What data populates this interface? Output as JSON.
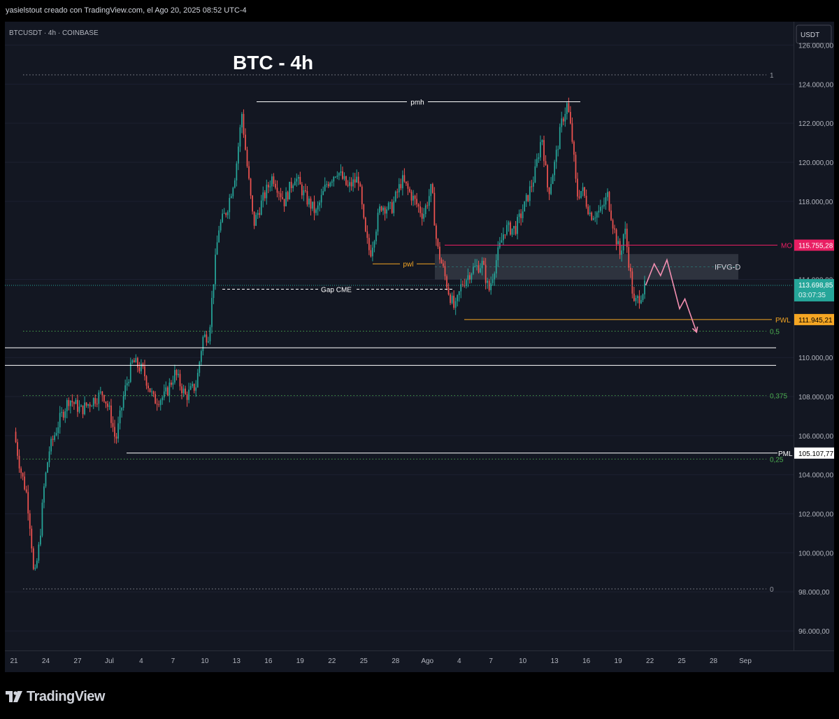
{
  "header_text": "yasielstout creado con TradingView.com, el Ago 20, 2025 08:52 UTC-4",
  "symbol_label": "BTCUSDT · 4h · COINBASE",
  "brand": "TradingView",
  "icon": "tradingview-logo-icon",
  "colors": {
    "background": "#131722",
    "up": "#26a69a",
    "down": "#ef5350",
    "mo": "#e91e63",
    "pwl": "#f5a623",
    "fib": "#4caf50",
    "annotation": "#ffffff"
  },
  "chart_data": {
    "type": "candlestick",
    "title": "BTC - 4h",
    "currency": "USDT",
    "ylim": [
      95000,
      127200
    ],
    "y_ticks": [
      {
        "value": 96000,
        "label": "96.000,00"
      },
      {
        "value": 98000,
        "label": "98.000,00"
      },
      {
        "value": 100000,
        "label": "100.000,00"
      },
      {
        "value": 102000,
        "label": "102.000,00"
      },
      {
        "value": 104000,
        "label": "104.000,00"
      },
      {
        "value": 106000,
        "label": "106.000,00"
      },
      {
        "value": 108000,
        "label": "108.000,00"
      },
      {
        "value": 110000,
        "label": "110.000,00"
      },
      {
        "value": 114000,
        "label": "114.000,00"
      },
      {
        "value": 118000,
        "label": "118.000,00"
      },
      {
        "value": 120000,
        "label": "120.000,00"
      },
      {
        "value": 122000,
        "label": "122.000,00"
      },
      {
        "value": 124000,
        "label": "124.000,00"
      },
      {
        "value": 126000,
        "label": "126.000,00"
      }
    ],
    "x_ticks": [
      {
        "day": 0,
        "label": "21"
      },
      {
        "day": 3,
        "label": "24"
      },
      {
        "day": 6,
        "label": "27"
      },
      {
        "day": 9,
        "label": "Jul"
      },
      {
        "day": 12,
        "label": "4"
      },
      {
        "day": 15,
        "label": "7"
      },
      {
        "day": 18,
        "label": "10"
      },
      {
        "day": 21,
        "label": "13"
      },
      {
        "day": 24,
        "label": "16"
      },
      {
        "day": 27,
        "label": "19"
      },
      {
        "day": 30,
        "label": "22"
      },
      {
        "day": 33,
        "label": "25"
      },
      {
        "day": 36,
        "label": "28"
      },
      {
        "day": 39,
        "label": "Ago"
      },
      {
        "day": 42,
        "label": "4"
      },
      {
        "day": 45,
        "label": "7"
      },
      {
        "day": 48,
        "label": "10"
      },
      {
        "day": 51,
        "label": "13"
      },
      {
        "day": 54,
        "label": "16"
      },
      {
        "day": 57,
        "label": "19"
      },
      {
        "day": 60,
        "label": "22"
      },
      {
        "day": 63,
        "label": "25"
      },
      {
        "day": 66,
        "label": "28"
      },
      {
        "day": 69,
        "label": "Sep"
      }
    ],
    "price_path": [
      {
        "day": 0,
        "price": 106200
      },
      {
        "day": 0.6,
        "price": 104300
      },
      {
        "day": 1.2,
        "price": 103000
      },
      {
        "day": 1.6,
        "price": 101000
      },
      {
        "day": 1.9,
        "price": 98500
      },
      {
        "day": 2.4,
        "price": 100500
      },
      {
        "day": 2.8,
        "price": 103200
      },
      {
        "day": 3.3,
        "price": 105200
      },
      {
        "day": 4.3,
        "price": 106800
      },
      {
        "day": 5.2,
        "price": 107900
      },
      {
        "day": 6.3,
        "price": 107300
      },
      {
        "day": 7.4,
        "price": 107800
      },
      {
        "day": 8.4,
        "price": 108200
      },
      {
        "day": 9.1,
        "price": 107100
      },
      {
        "day": 9.6,
        "price": 105700
      },
      {
        "day": 10.4,
        "price": 108200
      },
      {
        "day": 11.2,
        "price": 109800
      },
      {
        "day": 12.2,
        "price": 109300
      },
      {
        "day": 13.2,
        "price": 107800
      },
      {
        "day": 14.2,
        "price": 108000
      },
      {
        "day": 15.2,
        "price": 109200
      },
      {
        "day": 16.2,
        "price": 108000
      },
      {
        "day": 17.2,
        "price": 108600
      },
      {
        "day": 17.8,
        "price": 111000
      },
      {
        "day": 18.4,
        "price": 111200
      },
      {
        "day": 18.8,
        "price": 113800
      },
      {
        "day": 19.3,
        "price": 116600
      },
      {
        "day": 20.1,
        "price": 117600
      },
      {
        "day": 20.9,
        "price": 119500
      },
      {
        "day": 21.5,
        "price": 122500
      },
      {
        "day": 21.9,
        "price": 120300
      },
      {
        "day": 22.6,
        "price": 116800
      },
      {
        "day": 23.4,
        "price": 118000
      },
      {
        "day": 24.4,
        "price": 119300
      },
      {
        "day": 25.5,
        "price": 118000
      },
      {
        "day": 26.5,
        "price": 119300
      },
      {
        "day": 27.5,
        "price": 118200
      },
      {
        "day": 28.5,
        "price": 117400
      },
      {
        "day": 29.5,
        "price": 118900
      },
      {
        "day": 30.5,
        "price": 119600
      },
      {
        "day": 31.5,
        "price": 118700
      },
      {
        "day": 32.5,
        "price": 119200
      },
      {
        "day": 33.1,
        "price": 116400
      },
      {
        "day": 33.6,
        "price": 115300
      },
      {
        "day": 34.6,
        "price": 117800
      },
      {
        "day": 35.6,
        "price": 117600
      },
      {
        "day": 36.6,
        "price": 119100
      },
      {
        "day": 37.6,
        "price": 118200
      },
      {
        "day": 38.6,
        "price": 117300
      },
      {
        "day": 39.4,
        "price": 118700
      },
      {
        "day": 39.9,
        "price": 115700
      },
      {
        "day": 40.5,
        "price": 114500
      },
      {
        "day": 41.0,
        "price": 113400
      },
      {
        "day": 41.6,
        "price": 112400
      },
      {
        "day": 42.2,
        "price": 113700
      },
      {
        "day": 43.2,
        "price": 114500
      },
      {
        "day": 44.2,
        "price": 114800
      },
      {
        "day": 44.8,
        "price": 113400
      },
      {
        "day": 45.4,
        "price": 114800
      },
      {
        "day": 46.3,
        "price": 116600
      },
      {
        "day": 47.3,
        "price": 116600
      },
      {
        "day": 48.2,
        "price": 117800
      },
      {
        "day": 49.1,
        "price": 119300
      },
      {
        "day": 49.8,
        "price": 121400
      },
      {
        "day": 50.4,
        "price": 118400
      },
      {
        "day": 51.0,
        "price": 119900
      },
      {
        "day": 51.7,
        "price": 122100
      },
      {
        "day": 52.2,
        "price": 123000
      },
      {
        "day": 52.7,
        "price": 121000
      },
      {
        "day": 53.1,
        "price": 118300
      },
      {
        "day": 53.6,
        "price": 118600
      },
      {
        "day": 54.4,
        "price": 117300
      },
      {
        "day": 55.4,
        "price": 117500
      },
      {
        "day": 56.0,
        "price": 118300
      },
      {
        "day": 56.6,
        "price": 116600
      },
      {
        "day": 57.2,
        "price": 115200
      },
      {
        "day": 57.6,
        "price": 116700
      },
      {
        "day": 58.1,
        "price": 114500
      },
      {
        "day": 58.5,
        "price": 112700
      },
      {
        "day": 59.1,
        "price": 113200
      },
      {
        "day": 59.6,
        "price": 113700
      }
    ],
    "levels": [
      {
        "name": "MO",
        "value": 115755.28,
        "label": "115.755,28",
        "color": "#e91e63",
        "style": "solid"
      },
      {
        "name": "PWL",
        "value": 111945.21,
        "label": "111.945,21",
        "color": "#f5a623",
        "style": "solid"
      },
      {
        "name": "PML",
        "value": 105107.77,
        "label": "105.107,77",
        "color": "#ffffff",
        "style": "solid"
      },
      {
        "name": "current",
        "value": 113698.85,
        "label": "113.698,85",
        "sub_label": "03:07:35",
        "color": "#26a69a",
        "style": "dotted"
      }
    ],
    "fib_levels": [
      {
        "label": "1",
        "value": 124480
      },
      {
        "label": "0,5",
        "value": 111350
      },
      {
        "label": "0,375",
        "value": 108050
      },
      {
        "label": "0,25",
        "value": 104800
      },
      {
        "label": "0",
        "value": 98150
      }
    ],
    "annotations": [
      {
        "text": "pmh",
        "value": 123100
      },
      {
        "text": "pwl",
        "value": 114800
      },
      {
        "text": "Gap CME",
        "value": 113500
      },
      {
        "text": "IFVG-D",
        "zone": [
          114000,
          115300
        ]
      }
    ],
    "support_band": [
      109600,
      110500
    ],
    "projection": [
      {
        "day": 59.6,
        "price": 113700
      },
      {
        "day": 60.4,
        "price": 114800
      },
      {
        "day": 61.0,
        "price": 114200
      },
      {
        "day": 61.6,
        "price": 115000
      },
      {
        "day": 62.8,
        "price": 112500
      },
      {
        "day": 63.3,
        "price": 113000
      },
      {
        "day": 64.4,
        "price": 111300
      }
    ]
  }
}
